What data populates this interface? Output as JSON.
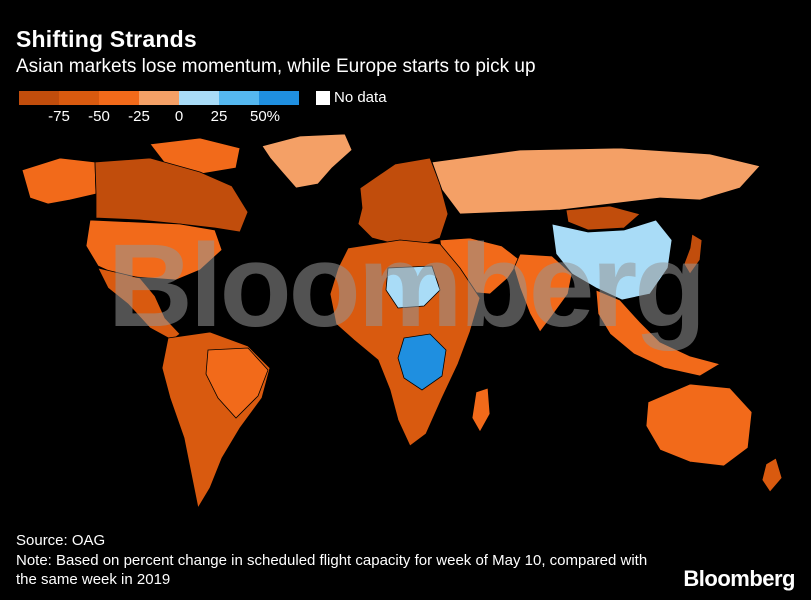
{
  "header": {
    "title": "Shifting Strands",
    "subtitle": "Asian markets lose momentum, while Europe starts to pick up"
  },
  "legend": {
    "scale": [
      {
        "color": "#c14d0c"
      },
      {
        "color": "#d95a0f"
      },
      {
        "color": "#f26a1a"
      },
      {
        "color": "#f4a066"
      },
      {
        "color": "#a9dcf7"
      },
      {
        "color": "#55b8f0"
      },
      {
        "color": "#1f8fe0"
      }
    ],
    "ticks": [
      "-75",
      "-50",
      "-25",
      "0",
      "25",
      "50%"
    ],
    "nodata_label": "No data"
  },
  "regions": {
    "north_america": "#c14d0c",
    "canada_arctic": "#f26a1a",
    "usa": "#f26a1a",
    "mexico": "#d95a0f",
    "greenland": "#f4a066",
    "south_america": "#d95a0f",
    "brazil": "#f26a1a",
    "europe": "#c14d0c",
    "russia": "#f4a066",
    "china": "#a9dcf7",
    "mongolia": "#c14d0c",
    "middle_east": "#f26a1a",
    "india": "#f26a1a",
    "africa": "#d95a0f",
    "sahel_blue": "#a9dcf7",
    "congo": "#1f8fe0",
    "southeast_asia": "#f26a1a",
    "japan": "#c14d0c",
    "australia": "#f26a1a",
    "new_zealand": "#d95a0f",
    "madagascar": "#f26a1a"
  },
  "watermark": "Bloomberg",
  "footer": {
    "source": "Source: OAG",
    "note": "Note: Based on percent change in scheduled flight capacity for week of May 10, compared with the same week in 2019",
    "brand": "Bloomberg"
  }
}
